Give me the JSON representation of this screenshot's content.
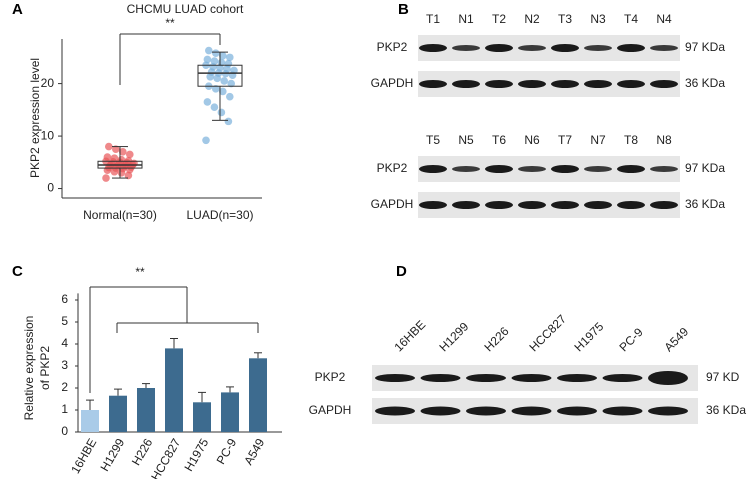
{
  "panel_labels": [
    "A",
    "B",
    "C",
    "D"
  ],
  "chart_data": [
    {
      "type": "box",
      "title": "CHCMU LUAD cohort",
      "ylabel": "PKP2 expression level",
      "significance": "**",
      "categories": [
        "Normal(n=30)",
        "LUAD(n=30)"
      ],
      "colors": [
        "#e8575a",
        "#7ab0dc"
      ],
      "points": [
        [
          2.0,
          2.5,
          3.0,
          3.2,
          3.5,
          3.6,
          3.8,
          3.9,
          4.0,
          4.1,
          4.2,
          4.3,
          4.4,
          4.5,
          4.5,
          4.6,
          4.7,
          4.8,
          4.9,
          5.0,
          5.1,
          5.2,
          5.3,
          5.5,
          5.8,
          6.0,
          6.5,
          7.0,
          7.5,
          8.0
        ],
        [
          9.2,
          12.8,
          14.5,
          15.5,
          16.5,
          17.5,
          18.5,
          19.0,
          19.5,
          20.0,
          20.5,
          21.0,
          21.3,
          21.6,
          21.9,
          22.0,
          22.2,
          22.5,
          22.8,
          23.0,
          23.2,
          23.5,
          23.8,
          24.0,
          24.3,
          24.6,
          25.0,
          25.3,
          25.8,
          26.3
        ]
      ],
      "boxes": [
        {
          "whisker_low": 2,
          "q1": 3.9,
          "median": 4.5,
          "q3": 5.2,
          "whisker_high": 8
        },
        {
          "whisker_low": 13,
          "q1": 19.5,
          "median": 22,
          "q3": 23.5,
          "whisker_high": 26
        }
      ],
      "ylim": [
        -1.8,
        28.5
      ],
      "yticks": [
        0,
        10,
        20
      ]
    },
    {
      "type": "bar",
      "ylabel": [
        "Relative expression",
        "of  PKP2"
      ],
      "significance": "**",
      "categories": [
        "16HBE",
        "H1299",
        "H226",
        "HCC827",
        "H1975",
        "PC-9",
        "A549"
      ],
      "values": [
        1.0,
        1.65,
        2.0,
        3.8,
        1.35,
        1.8,
        3.35
      ],
      "errors": [
        0.45,
        0.3,
        0.2,
        0.45,
        0.45,
        0.25,
        0.25
      ],
      "colors": [
        "#a9cbe8",
        "#3d6b8f",
        "#3d6b8f",
        "#3d6b8f",
        "#3d6b8f",
        "#3d6b8f",
        "#3d6b8f"
      ],
      "ylim": [
        0,
        6.3
      ],
      "yticks": [
        0,
        1,
        2,
        3,
        4,
        5,
        6
      ]
    }
  ],
  "blots": {
    "B": [
      {
        "lanes": [
          "T1",
          "N1",
          "T2",
          "N2",
          "T3",
          "N3",
          "T4",
          "N4"
        ],
        "rows": [
          {
            "label": "PKP2",
            "size": "97 KDa"
          },
          {
            "label": "GAPDH",
            "size": "36 KDa"
          }
        ]
      },
      {
        "lanes": [
          "T5",
          "N5",
          "T6",
          "N6",
          "T7",
          "N7",
          "T8",
          "N8"
        ],
        "rows": [
          {
            "label": "PKP2",
            "size": "97 KDa"
          },
          {
            "label": "GAPDH",
            "size": "36 KDa"
          }
        ]
      }
    ],
    "D": {
      "lanes": [
        "16HBE",
        "H1299",
        "H226",
        "HCC827",
        "H1975",
        "PC-9",
        "A549"
      ],
      "rows": [
        {
          "label": "PKP2",
          "size": "97 KD"
        },
        {
          "label": "GAPDH",
          "size": "36 KDa"
        }
      ]
    }
  }
}
